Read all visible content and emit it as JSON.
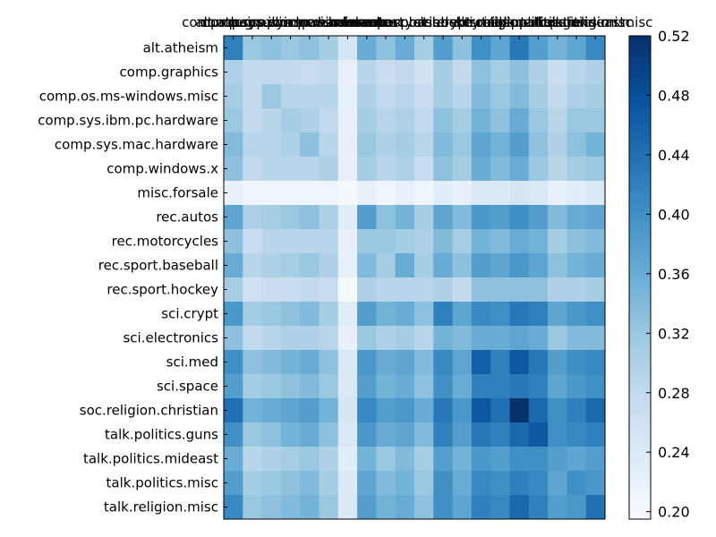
{
  "chart_data": {
    "type": "heatmap",
    "title": "",
    "xlabel": "",
    "ylabel": "",
    "categories": [
      "alt.atheism",
      "comp.graphics",
      "comp.os.ms-windows.misc",
      "comp.sys.ibm.pc.hardware",
      "comp.sys.mac.hardware",
      "comp.windows.x",
      "misc.forsale",
      "rec.autos",
      "rec.motorcycles",
      "rec.sport.baseball",
      "rec.sport.hockey",
      "sci.crypt",
      "sci.electronics",
      "sci.med",
      "sci.space",
      "soc.religion.christian",
      "talk.politics.guns",
      "talk.politics.mideast",
      "talk.politics.misc",
      "talk.religion.misc"
    ],
    "x_labels": [
      "alt.atheism",
      "comp.graphics",
      "comp.os.ms-windows.misc",
      "comp.sys.ibm.pc.hardware",
      "comp.sys.mac.hardware",
      "comp.windows.x",
      "misc.forsale",
      "rec.autos",
      "rec.motorcycles",
      "rec.sport.baseball",
      "rec.sport.hockey",
      "sci.crypt",
      "sci.electronics",
      "sci.med",
      "sci.space",
      "soc.religion.christian",
      "talk.politics.guns",
      "talk.politics.mideast",
      "talk.politics.misc",
      "talk.religion.misc"
    ],
    "values": [
      [
        0.42,
        0.32,
        0.33,
        0.32,
        0.33,
        0.31,
        0.25,
        0.36,
        0.33,
        0.36,
        0.31,
        0.38,
        0.33,
        0.4,
        0.37,
        0.43,
        0.38,
        0.35,
        0.37,
        0.41
      ],
      [
        0.3,
        0.28,
        0.28,
        0.28,
        0.27,
        0.28,
        0.22,
        0.29,
        0.27,
        0.28,
        0.26,
        0.31,
        0.28,
        0.33,
        0.31,
        0.33,
        0.3,
        0.27,
        0.29,
        0.3
      ],
      [
        0.31,
        0.28,
        0.32,
        0.29,
        0.29,
        0.29,
        0.22,
        0.3,
        0.28,
        0.29,
        0.27,
        0.31,
        0.29,
        0.34,
        0.32,
        0.34,
        0.31,
        0.28,
        0.3,
        0.31
      ],
      [
        0.32,
        0.28,
        0.29,
        0.31,
        0.3,
        0.28,
        0.22,
        0.31,
        0.29,
        0.3,
        0.28,
        0.33,
        0.31,
        0.35,
        0.33,
        0.36,
        0.32,
        0.29,
        0.32,
        0.32
      ],
      [
        0.34,
        0.29,
        0.29,
        0.3,
        0.33,
        0.29,
        0.22,
        0.32,
        0.3,
        0.31,
        0.29,
        0.34,
        0.32,
        0.37,
        0.35,
        0.38,
        0.33,
        0.3,
        0.33,
        0.35
      ],
      [
        0.33,
        0.28,
        0.29,
        0.29,
        0.29,
        0.3,
        0.22,
        0.31,
        0.29,
        0.3,
        0.27,
        0.33,
        0.31,
        0.36,
        0.34,
        0.36,
        0.32,
        0.29,
        0.31,
        0.32
      ],
      [
        0.22,
        0.21,
        0.21,
        0.21,
        0.21,
        0.21,
        0.2,
        0.22,
        0.21,
        0.22,
        0.21,
        0.23,
        0.22,
        0.24,
        0.24,
        0.25,
        0.24,
        0.22,
        0.23,
        0.24
      ],
      [
        0.37,
        0.3,
        0.31,
        0.32,
        0.33,
        0.3,
        0.23,
        0.38,
        0.33,
        0.35,
        0.31,
        0.37,
        0.34,
        0.39,
        0.38,
        0.4,
        0.38,
        0.34,
        0.36,
        0.37
      ],
      [
        0.33,
        0.27,
        0.29,
        0.29,
        0.29,
        0.29,
        0.22,
        0.32,
        0.32,
        0.31,
        0.3,
        0.34,
        0.31,
        0.35,
        0.34,
        0.36,
        0.35,
        0.31,
        0.33,
        0.34
      ],
      [
        0.36,
        0.29,
        0.3,
        0.31,
        0.32,
        0.3,
        0.22,
        0.34,
        0.31,
        0.36,
        0.31,
        0.36,
        0.33,
        0.38,
        0.37,
        0.39,
        0.37,
        0.33,
        0.35,
        0.36
      ],
      [
        0.31,
        0.26,
        0.27,
        0.27,
        0.28,
        0.27,
        0.2,
        0.3,
        0.29,
        0.29,
        0.29,
        0.3,
        0.28,
        0.33,
        0.33,
        0.33,
        0.33,
        0.3,
        0.3,
        0.31
      ],
      [
        0.39,
        0.31,
        0.32,
        0.33,
        0.34,
        0.31,
        0.23,
        0.38,
        0.35,
        0.36,
        0.33,
        0.42,
        0.37,
        0.41,
        0.4,
        0.43,
        0.42,
        0.37,
        0.39,
        0.4
      ],
      [
        0.33,
        0.28,
        0.29,
        0.3,
        0.3,
        0.29,
        0.22,
        0.32,
        0.3,
        0.31,
        0.29,
        0.35,
        0.34,
        0.36,
        0.36,
        0.37,
        0.36,
        0.32,
        0.34,
        0.34
      ],
      [
        0.4,
        0.33,
        0.34,
        0.35,
        0.36,
        0.33,
        0.24,
        0.39,
        0.36,
        0.37,
        0.34,
        0.41,
        0.37,
        0.46,
        0.42,
        0.47,
        0.43,
        0.38,
        0.4,
        0.41
      ],
      [
        0.38,
        0.31,
        0.32,
        0.33,
        0.34,
        0.32,
        0.24,
        0.38,
        0.35,
        0.36,
        0.33,
        0.4,
        0.36,
        0.42,
        0.42,
        0.43,
        0.42,
        0.37,
        0.39,
        0.4
      ],
      [
        0.44,
        0.35,
        0.36,
        0.37,
        0.38,
        0.35,
        0.25,
        0.41,
        0.38,
        0.39,
        0.36,
        0.43,
        0.39,
        0.47,
        0.44,
        0.52,
        0.45,
        0.4,
        0.42,
        0.45
      ],
      [
        0.4,
        0.32,
        0.33,
        0.35,
        0.36,
        0.33,
        0.24,
        0.39,
        0.36,
        0.37,
        0.34,
        0.42,
        0.38,
        0.43,
        0.42,
        0.45,
        0.47,
        0.4,
        0.41,
        0.42
      ],
      [
        0.36,
        0.29,
        0.3,
        0.31,
        0.32,
        0.3,
        0.23,
        0.35,
        0.32,
        0.34,
        0.31,
        0.38,
        0.35,
        0.39,
        0.38,
        0.4,
        0.4,
        0.38,
        0.37,
        0.38
      ],
      [
        0.38,
        0.31,
        0.32,
        0.33,
        0.34,
        0.31,
        0.24,
        0.37,
        0.34,
        0.35,
        0.32,
        0.4,
        0.36,
        0.41,
        0.4,
        0.42,
        0.41,
        0.37,
        0.4,
        0.39
      ],
      [
        0.41,
        0.32,
        0.33,
        0.34,
        0.35,
        0.32,
        0.24,
        0.38,
        0.35,
        0.36,
        0.33,
        0.4,
        0.37,
        0.42,
        0.41,
        0.45,
        0.42,
        0.38,
        0.39,
        0.44
      ]
    ],
    "colorbar": {
      "min": 0.195,
      "max": 0.52,
      "ticks": [
        "0.20",
        "0.24",
        "0.28",
        "0.32",
        "0.36",
        "0.40",
        "0.44",
        "0.48",
        "0.52"
      ]
    },
    "colormap": [
      "#f7fbff",
      "#deebf7",
      "#c6dbef",
      "#9ecae1",
      "#6baed6",
      "#4292c6",
      "#2171b5",
      "#08519c",
      "#08306b"
    ]
  }
}
